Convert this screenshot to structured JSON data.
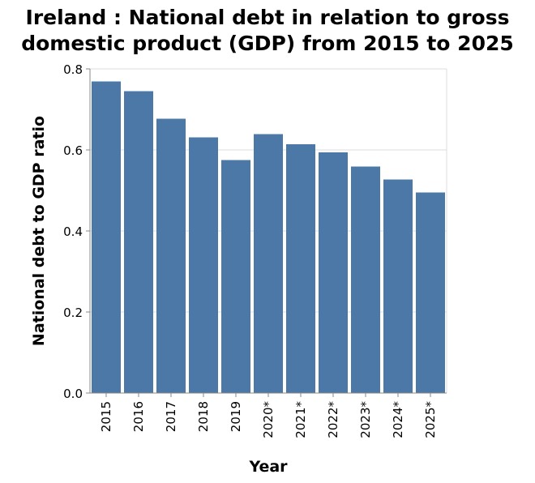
{
  "chart_data": {
    "type": "bar",
    "title_line1": "Ireland : National debt in relation to gross",
    "title_line2": "domestic product (GDP) from 2015 to 2025",
    "xlabel": "Year",
    "ylabel": "National debt to GDP ratio",
    "categories": [
      "2015",
      "2016",
      "2017",
      "2018",
      "2019",
      "2020*",
      "2021*",
      "2022*",
      "2023*",
      "2024*",
      "2025*"
    ],
    "values": [
      0.769,
      0.745,
      0.677,
      0.631,
      0.575,
      0.639,
      0.614,
      0.594,
      0.559,
      0.527,
      0.495
    ],
    "ylim": [
      0,
      0.8
    ],
    "yticks": [
      "0.0",
      "0.2",
      "0.4",
      "0.6",
      "0.8"
    ],
    "ytick_values": [
      0,
      0.2,
      0.4,
      0.6,
      0.8
    ],
    "grid": true,
    "colors": {
      "bar": "#4c78a8",
      "grid": "#dddddd",
      "axis": "#888888"
    }
  }
}
